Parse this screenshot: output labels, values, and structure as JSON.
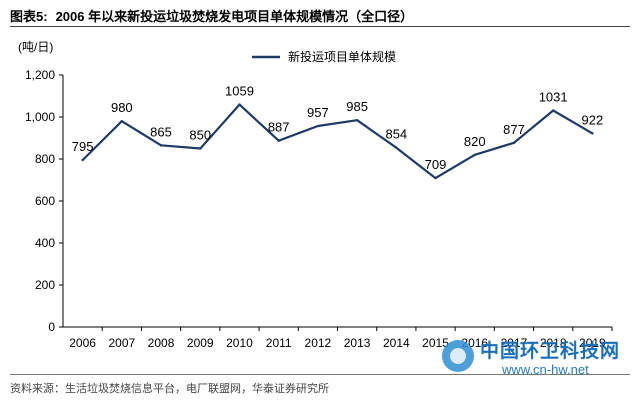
{
  "header": {
    "figure_number": "图表5:",
    "title": "2006 年以来新投运垃圾焚烧发电项目单体规模情况（全口径）"
  },
  "footer": {
    "source": "资料来源：生活垃圾焚烧信息平台，电厂联盟网，华泰证券研究所"
  },
  "watermark": {
    "name": "中国环卫科技网",
    "url": "www.cn-hw.net"
  },
  "colors": {
    "series": "#1f3a66"
  },
  "chart_data": {
    "type": "line",
    "title": "2006 年以来新投运垃圾焚烧发电项目单体规模情况（全口径）",
    "unit_label": "(吨/日)",
    "xlabel": "",
    "ylabel": "",
    "ylim": [
      0,
      1200
    ],
    "yticks": [
      0,
      200,
      400,
      600,
      800,
      1000,
      1200
    ],
    "ytick_labels": [
      "0",
      "200",
      "400",
      "600",
      "800",
      "1,000",
      "1,200"
    ],
    "categories": [
      "2006",
      "2007",
      "2008",
      "2009",
      "2010",
      "2011",
      "2012",
      "2013",
      "2014",
      "2015",
      "2016",
      "2017",
      "2018",
      "2019"
    ],
    "series": [
      {
        "name": "新投运项目单体规模",
        "values": [
          795,
          980,
          865,
          850,
          1059,
          887,
          957,
          985,
          854,
          709,
          820,
          877,
          1031,
          922
        ],
        "data_labels": [
          "795",
          "980",
          "865",
          "850",
          "1059",
          "887",
          "957",
          "985",
          "854",
          "709",
          "820",
          "877",
          "1031",
          "922"
        ]
      }
    ],
    "legend_position": "top-center",
    "grid": false
  }
}
